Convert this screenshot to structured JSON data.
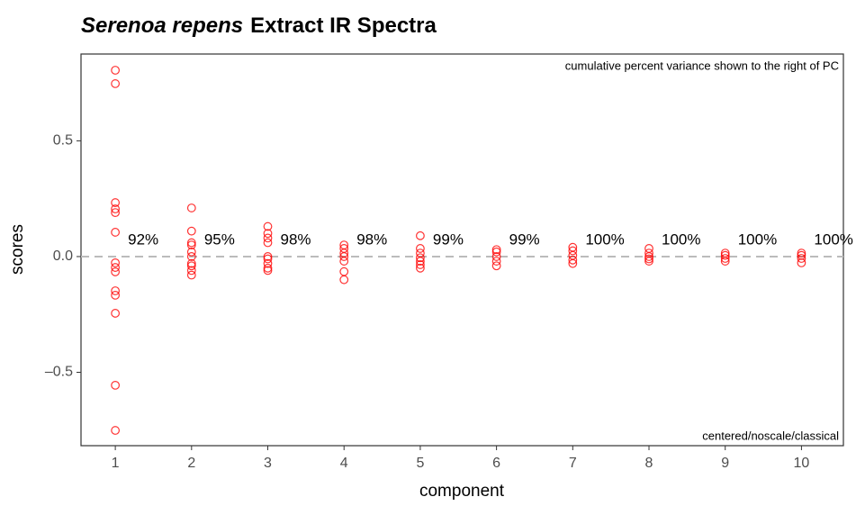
{
  "chart_data": {
    "type": "scatter",
    "title": {
      "italic": "Serenoa repens",
      "plain": "Extract IR Spectra"
    },
    "x_label": "component",
    "y_label": "scores",
    "annotation_top": "cumulative percent variance shown to the right of PC",
    "annotation_bottom": "centered/noscale/classical",
    "color": "#ff0000",
    "reference_line": 0,
    "xlim": [
      0.55,
      10.55
    ],
    "xticks": [
      1,
      2,
      3,
      4,
      5,
      6,
      7,
      8,
      9,
      10
    ],
    "ylim": [
      -0.817,
      0.875
    ],
    "yticks": [
      {
        "value": -0.5,
        "label": "–0.5"
      },
      {
        "value": 0,
        "label": "0.0"
      },
      {
        "value": 0.5,
        "label": "0.5"
      }
    ],
    "components": [
      1,
      2,
      3,
      4,
      5,
      6,
      7,
      8,
      9,
      10
    ],
    "variance_labels": [
      "92%",
      "95%",
      "98%",
      "98%",
      "99%",
      "99%",
      "100%",
      "100%",
      "100%",
      "100%"
    ],
    "x": [
      1,
      1,
      1,
      1,
      1,
      1,
      1,
      1,
      1,
      1,
      1,
      1,
      1,
      1,
      2,
      2,
      2,
      2,
      2,
      2,
      2,
      2,
      2,
      2,
      3,
      3,
      3,
      3,
      3,
      3,
      3,
      3,
      3,
      4,
      4,
      4,
      4,
      4,
      4,
      4,
      5,
      5,
      5,
      5,
      5,
      5,
      5,
      6,
      6,
      6,
      6,
      6,
      7,
      7,
      7,
      7,
      7,
      8,
      8,
      8,
      8,
      8,
      9,
      9,
      9,
      9,
      10,
      10,
      10,
      10
    ],
    "values": [
      0.805,
      0.747,
      0.233,
      0.206,
      0.19,
      0.105,
      -0.027,
      -0.047,
      -0.066,
      -0.148,
      -0.167,
      -0.245,
      -0.556,
      -0.751,
      0.21,
      0.11,
      0.06,
      0.05,
      0.02,
      0,
      -0.03,
      -0.04,
      -0.06,
      -0.08,
      0.13,
      0.1,
      0.08,
      0.06,
      0,
      -0.01,
      -0.03,
      -0.05,
      -0.06,
      0.05,
      0.035,
      0.015,
      0,
      -0.02,
      -0.065,
      -0.1,
      0.09,
      0.035,
      0.015,
      -0.005,
      -0.02,
      -0.035,
      -0.05,
      0.03,
      0.02,
      0,
      -0.02,
      -0.04,
      0.04,
      0.025,
      0.005,
      -0.015,
      -0.03,
      0.035,
      0.015,
      0,
      -0.01,
      -0.02,
      0.015,
      0.005,
      -0.008,
      -0.02,
      0.015,
      0.005,
      -0.008,
      -0.027
    ]
  }
}
